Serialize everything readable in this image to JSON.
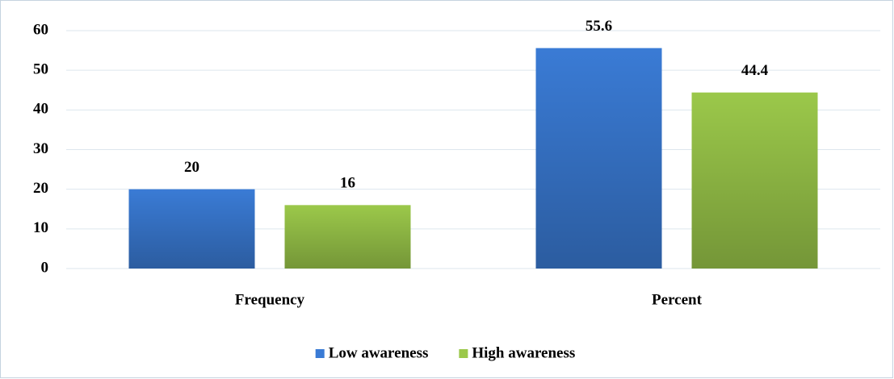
{
  "chart_data": {
    "type": "bar",
    "categories": [
      "Frequency",
      "Percent"
    ],
    "series": [
      {
        "name": "Low awareness",
        "color": "#3a7bd5",
        "values": [
          20,
          55.6
        ]
      },
      {
        "name": "High awareness",
        "color": "#9bc84a",
        "values": [
          16,
          44.4
        ]
      }
    ],
    "ylim": [
      0,
      60
    ],
    "yticks": [
      0,
      10,
      20,
      30,
      40,
      50,
      60
    ],
    "grid": true,
    "legend": "bottom"
  }
}
